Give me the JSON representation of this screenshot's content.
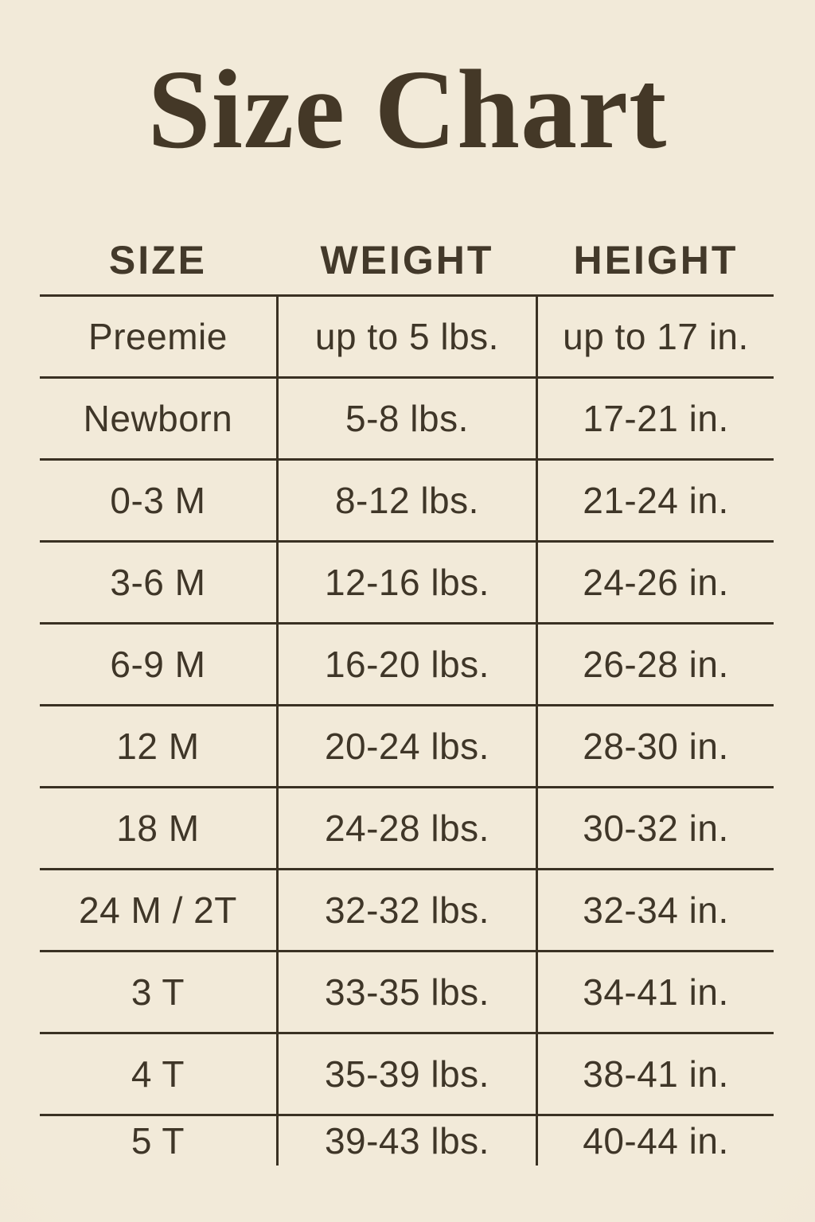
{
  "colors": {
    "background": "#f1e8da",
    "ink": "#3e3425",
    "title_ink": "#443827",
    "grid_line": "#3a3123"
  },
  "chart_data": {
    "type": "table",
    "title": "Size Chart",
    "columns": [
      "SIZE",
      "WEIGHT",
      "HEIGHT"
    ],
    "rows": [
      [
        "Preemie",
        "up to 5 lbs.",
        "up to 17 in."
      ],
      [
        "Newborn",
        "5-8 lbs.",
        "17-21 in."
      ],
      [
        "0-3 M",
        "8-12 lbs.",
        "21-24 in."
      ],
      [
        "3-6 M",
        "12-16 lbs.",
        "24-26 in."
      ],
      [
        "6-9 M",
        "16-20 lbs.",
        "26-28 in."
      ],
      [
        "12 M",
        "20-24 lbs.",
        "28-30 in."
      ],
      [
        "18 M",
        "24-28 lbs.",
        "30-32 in."
      ],
      [
        "24 M / 2T",
        "32-32 lbs.",
        "32-34 in."
      ],
      [
        "3 T",
        "33-35 lbs.",
        "34-41 in."
      ],
      [
        "4 T",
        "35-39 lbs.",
        "38-41 in."
      ],
      [
        "5 T",
        "39-43 lbs.",
        "40-44 in."
      ]
    ],
    "layout": {
      "grid": "horizontal rules between rows, vertical rules around middle column only, no outer frame, no bottom rule",
      "header_row_has_no_rules": true
    }
  }
}
